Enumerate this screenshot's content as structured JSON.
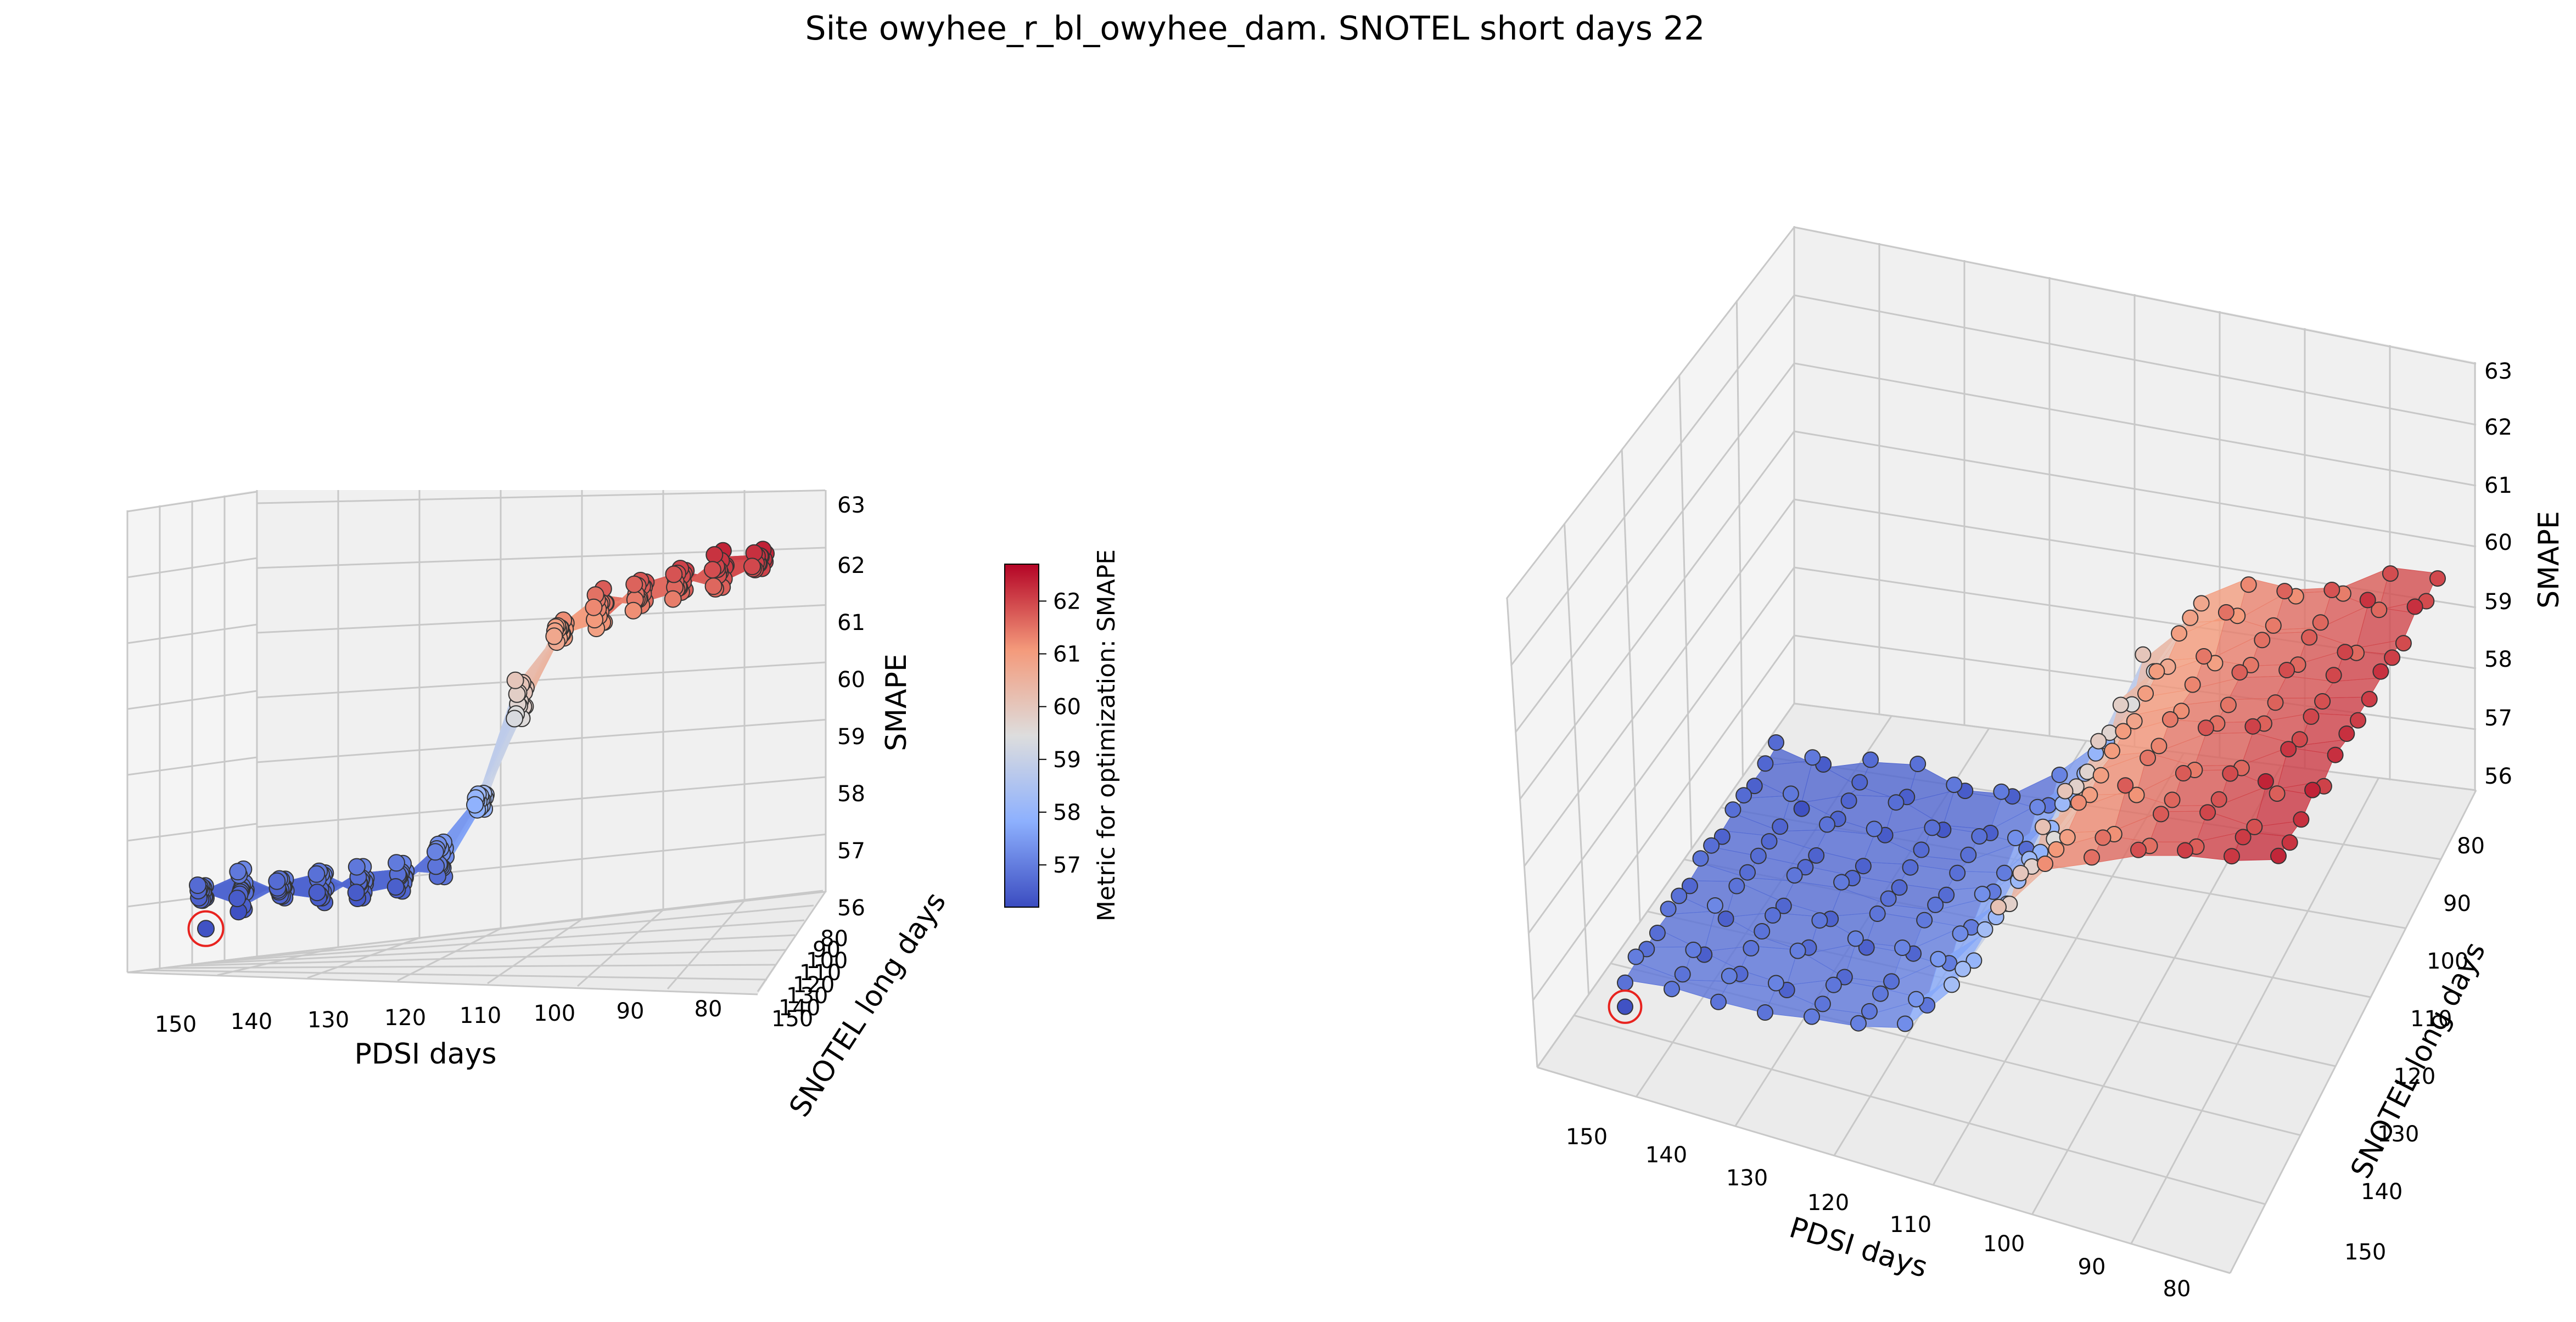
{
  "figure": {
    "title": "Site owyhee_r_bl_owyhee_dam. SNOTEL short days 22"
  },
  "colormap": {
    "name": "coolwarm",
    "low_color": "#3b4cc0",
    "mid_color": "#dddddd",
    "high_color": "#b40426"
  },
  "best_point_marker_color": "#e8231f",
  "colorbar": {
    "label": "Metric for optimization: SMAPE",
    "range": [
      56.2,
      62.7
    ],
    "ticks": [
      "57",
      "58",
      "59",
      "60",
      "61",
      "62"
    ]
  },
  "chart_data": [
    {
      "type": "scatter",
      "subtype": "3d-scatter-with-surface",
      "view": "low elevation, viewed along SNOTEL long days axis",
      "xlabel": "PDSI days",
      "ylabel": "SNOTEL long days",
      "zlabel": "SMAPE",
      "xlim": [
        155,
        78
      ],
      "ylim": [
        78,
        155
      ],
      "zlim": [
        56,
        63
      ],
      "xticks": [
        "150",
        "140",
        "130",
        "120",
        "110",
        "100",
        "90",
        "80"
      ],
      "yticks": [
        "150",
        "140",
        "130",
        "120",
        "110",
        "100",
        "90",
        "80"
      ],
      "zticks": [
        "56",
        "57",
        "58",
        "59",
        "60",
        "61",
        "62",
        "63"
      ],
      "grid": true,
      "x_grid": [
        150,
        145,
        140,
        135,
        130,
        125,
        120,
        115,
        110,
        105,
        100,
        95,
        90,
        85,
        80
      ],
      "y_grid": [
        80,
        85,
        90,
        95,
        100,
        105,
        110,
        115,
        120,
        125,
        130,
        135,
        140,
        145,
        150
      ],
      "smape_model": {
        "description": "SMAPE rises from about 56.6 at PDSI 150 to about 62.6 at PDSI 80; sharp step near PDSI 112; slight increase with SNOTEL long days",
        "low_plateau": 56.6,
        "high_plateau": 61.3,
        "step_center_pdsi": 112,
        "max_value": 62.7
      },
      "best_point": {
        "pdsi_days": 150,
        "snotel_long_days": 150,
        "smape": 56.3
      }
    },
    {
      "type": "scatter",
      "subtype": "3d-scatter-with-surface",
      "view": "elevated perspective",
      "xlabel": "PDSI days",
      "ylabel": "SNOTEL long days",
      "zlabel": "SMAPE",
      "xlim": [
        155,
        78
      ],
      "ylim": [
        78,
        155
      ],
      "zlim": [
        56,
        63
      ],
      "xticks": [
        "150",
        "140",
        "130",
        "120",
        "110",
        "100",
        "90",
        "80"
      ],
      "yticks": [
        "80",
        "90",
        "100",
        "110",
        "120",
        "130",
        "140",
        "150"
      ],
      "zticks": [
        "56",
        "57",
        "58",
        "59",
        "60",
        "61",
        "62",
        "63"
      ],
      "grid": true,
      "x_grid": [
        150,
        145,
        140,
        135,
        130,
        125,
        120,
        115,
        110,
        105,
        100,
        95,
        90,
        85,
        80
      ],
      "y_grid": [
        80,
        85,
        90,
        95,
        100,
        105,
        110,
        115,
        120,
        125,
        130,
        135,
        140,
        145,
        150
      ],
      "smape_model": {
        "description": "same data as the left view",
        "low_plateau": 56.6,
        "high_plateau": 61.3,
        "step_center_pdsi": 112,
        "max_value": 62.7
      },
      "best_point": {
        "pdsi_days": 150,
        "snotel_long_days": 150,
        "smape": 56.3
      }
    }
  ]
}
